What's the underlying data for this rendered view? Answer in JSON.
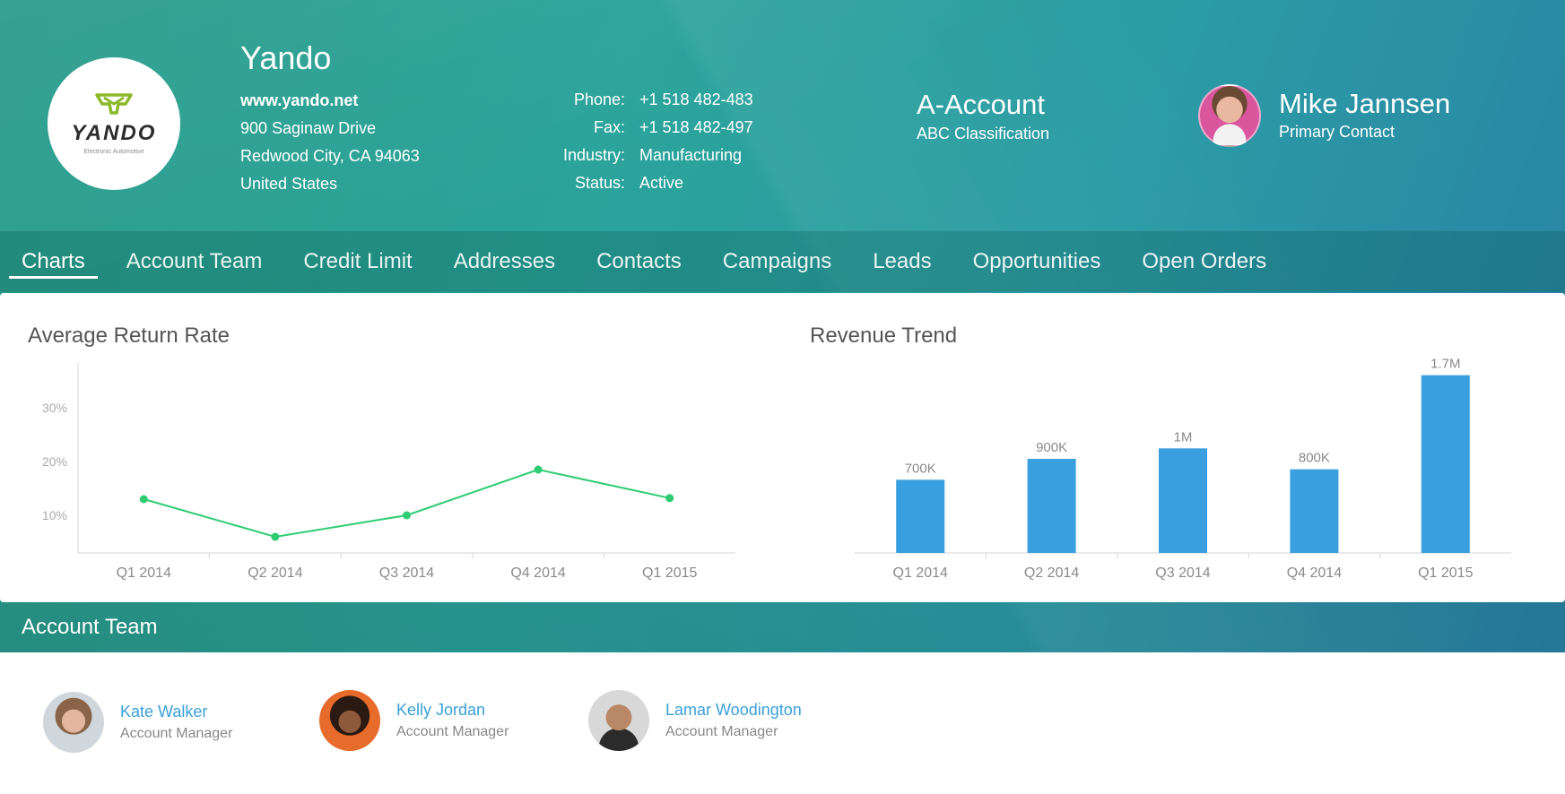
{
  "company": {
    "name": "Yando",
    "website": "www.yando.net",
    "address_line1": "900 Saginaw Drive",
    "address_line2": "Redwood City, CA 94063",
    "country": "United States",
    "logo_word": "YANDO",
    "logo_tagline": "Electronic Automotive"
  },
  "details": [
    {
      "key": "Phone:",
      "value": "+1 518 482-483"
    },
    {
      "key": "Fax:",
      "value": "+1 518 482-497"
    },
    {
      "key": "Industry:",
      "value": "Manufacturing"
    },
    {
      "key": "Status:",
      "value": "Active"
    }
  ],
  "classification": {
    "title": "A-Account",
    "subtitle": "ABC Classification"
  },
  "primary_contact": {
    "name": "Mike Jannsen",
    "role": "Primary Contact"
  },
  "tabs": [
    {
      "label": "Charts",
      "active": true
    },
    {
      "label": "Account Team"
    },
    {
      "label": "Credit Limit"
    },
    {
      "label": "Addresses"
    },
    {
      "label": "Contacts"
    },
    {
      "label": "Campaigns"
    },
    {
      "label": "Leads"
    },
    {
      "label": "Opportunities"
    },
    {
      "label": "Open Orders"
    }
  ],
  "chart_data": [
    {
      "type": "line",
      "title": "Average Return Rate",
      "categories": [
        "Q1 2014",
        "Q2 2014",
        "Q3 2014",
        "Q4 2014",
        "Q1 2015"
      ],
      "values": [
        13,
        6,
        10,
        18.5,
        13.2
      ],
      "ylim": [
        3,
        38
      ],
      "yticks": [
        10,
        20,
        30
      ],
      "ytick_labels": [
        "10%",
        "20%",
        "30%"
      ],
      "color": "#2ecc71"
    },
    {
      "type": "bar",
      "title": "Revenue Trend",
      "categories": [
        "Q1 2014",
        "Q2 2014",
        "Q3 2014",
        "Q4 2014",
        "Q1 2015"
      ],
      "values": [
        700000,
        900000,
        1000000,
        800000,
        1700000
      ],
      "labels": [
        "700K",
        "900K",
        "1M",
        "800K",
        "1.7M"
      ],
      "ylim": [
        0,
        1800000
      ],
      "color": "#3a9fde"
    }
  ],
  "section": {
    "title": "Account Team"
  },
  "team": [
    {
      "name": "Kate Walker",
      "role": "Account Manager"
    },
    {
      "name": "Kelly Jordan",
      "role": "Account Manager"
    },
    {
      "name": "Lamar Woodington",
      "role": "Account Manager"
    }
  ]
}
